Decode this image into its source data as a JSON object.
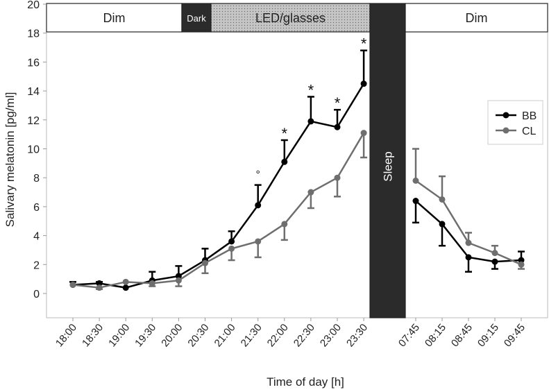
{
  "chart_data": {
    "type": "line",
    "title": "",
    "xlabel": "Time of day [h]",
    "ylabel": "Salivary melatonin [pg/ml]",
    "ylim": [
      -1.7,
      20
    ],
    "yticks": [
      0,
      2,
      4,
      6,
      8,
      10,
      12,
      14,
      16,
      18,
      20
    ],
    "evening_x": [
      "18:00",
      "18:30",
      "19:00",
      "19:30",
      "20:00",
      "20:30",
      "21:00",
      "21:30",
      "22:00",
      "22:30",
      "23:00",
      "23:30"
    ],
    "morning_x": [
      "07:45",
      "08:15",
      "08:45",
      "09:15",
      "09:45"
    ],
    "bands": [
      {
        "label": "Dim",
        "style": "white"
      },
      {
        "label": "Dark",
        "style": "dark"
      },
      {
        "label": "LED/glasses",
        "style": "dotted"
      },
      {
        "label": "Sleep",
        "style": "dark"
      },
      {
        "label": "Dim",
        "style": "white"
      }
    ],
    "legend": {
      "position": "right",
      "entries": [
        "BB",
        "CL"
      ]
    },
    "series": [
      {
        "name": "BB",
        "color": "#000000",
        "error_dir": "up",
        "evening": [
          0.6,
          0.7,
          0.4,
          0.9,
          1.2,
          2.3,
          3.6,
          6.1,
          9.1,
          11.9,
          11.5,
          14.5
        ],
        "evening_err": [
          0.2,
          0.1,
          0,
          0.6,
          0.7,
          0.8,
          0.7,
          1.4,
          1.5,
          1.7,
          1.2,
          2.3
        ],
        "morning": [
          6.4,
          4.8,
          2.5,
          2.2,
          2.3
        ],
        "morning_err": [
          1.5,
          1.5,
          1.0,
          0.5,
          0.6
        ],
        "morning_error_dir": [
          "down",
          "down",
          "down",
          "down",
          "up"
        ]
      },
      {
        "name": "CL",
        "color": "#6e6e6e",
        "error_dir": "down",
        "evening": [
          0.6,
          0.4,
          0.8,
          0.7,
          0.9,
          2.1,
          3.1,
          3.6,
          4.8,
          7.0,
          8.0,
          11.1
        ],
        "evening_err": [
          0,
          0.1,
          0,
          0.2,
          0.4,
          0.7,
          0.8,
          1.1,
          1.1,
          1.1,
          1.3,
          1.7
        ],
        "morning": [
          7.8,
          6.5,
          3.5,
          2.8,
          2.0
        ],
        "morning_err": [
          2.2,
          1.6,
          0.7,
          0.5,
          0.3
        ],
        "morning_error_dir": [
          "up",
          "up",
          "up",
          "up",
          "down"
        ]
      }
    ],
    "annotations": [
      "",
      "",
      "",
      "",
      "",
      "",
      "",
      "°",
      "*",
      "*",
      "*",
      "*"
    ]
  }
}
